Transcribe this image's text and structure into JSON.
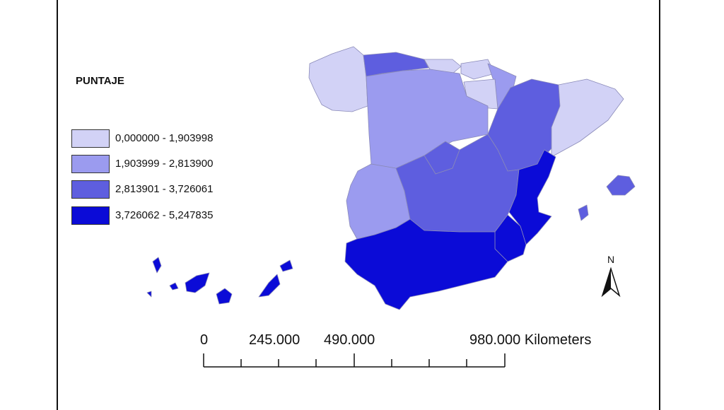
{
  "legend": {
    "title": "PUNTAJE",
    "classes": [
      {
        "label": "0,000000 - 1,903998",
        "color": "#d2d2f6"
      },
      {
        "label": "1,903999 - 2,813900",
        "color": "#9b9bef"
      },
      {
        "label": "2,813901 - 3,726061",
        "color": "#5e5edf"
      },
      {
        "label": "3,726062 - 5,247835",
        "color": "#0b0bd7"
      }
    ]
  },
  "scale_bar": {
    "labels": [
      "0",
      "245.000",
      "490.000",
      "980.000 Kilometers"
    ]
  },
  "north_arrow": {
    "label": "N"
  }
}
